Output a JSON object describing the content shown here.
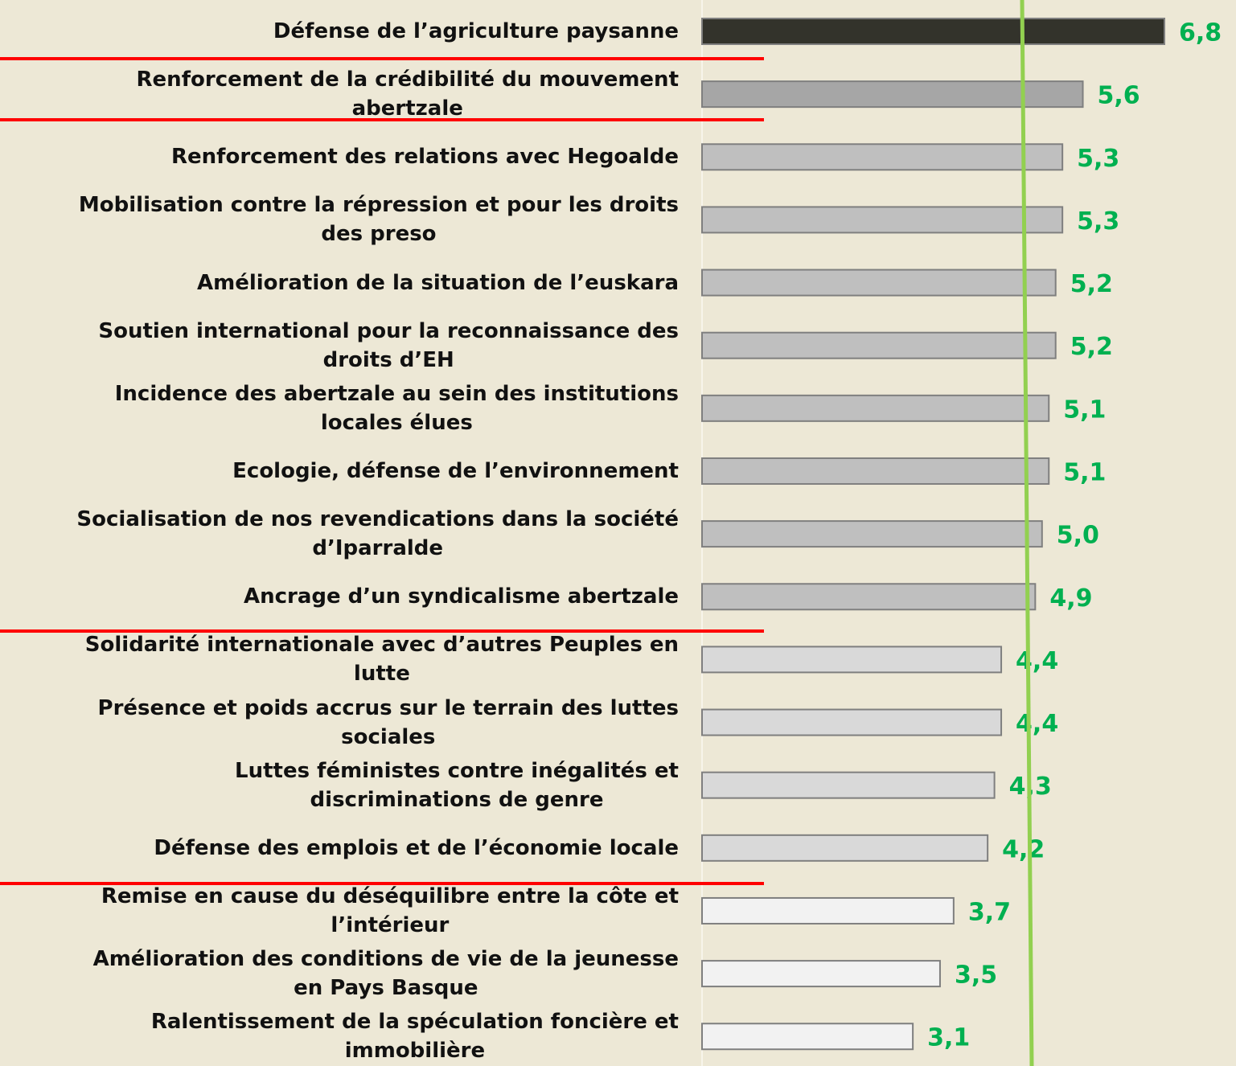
{
  "chart_data": {
    "type": "bar",
    "categories": [
      "Défense de l’agriculture paysanne",
      "Renforcement de la crédibilité du mouvement\nabertzale",
      "Renforcement des relations avec Hegoalde",
      "Mobilisation contre la répression et pour les droits\ndes preso",
      "Amélioration de la situation de l’euskara",
      "Soutien international pour la reconnaissance des\ndroits d’EH",
      "Incidence des abertzale au sein des institutions\nlocales élues",
      "Ecologie, défense de l’environnement",
      "Socialisation de nos revendications dans  la société\nd’Iparralde",
      "Ancrage d’un syndicalisme abertzale",
      "Solidarité internationale avec d’autres Peuples en\nlutte",
      "Présence et poids accrus sur le terrain des luttes\nsociales",
      "Luttes féministes contre inégalités et\ndiscriminations de genre",
      "Défense des emplois et de l’économie locale",
      "Remise en cause du déséquilibre entre la côte et\nl’intérieur",
      "Amélioration des conditions de vie de la jeunesse\nen Pays Basque",
      "Ralentissement de la spéculation foncière et\nimmobilière"
    ],
    "values": [
      6.8,
      5.6,
      5.3,
      5.3,
      5.2,
      5.2,
      5.1,
      5.1,
      5.0,
      4.9,
      4.4,
      4.4,
      4.3,
      4.2,
      3.7,
      3.5,
      3.1
    ],
    "value_labels": [
      "6,8",
      "5,6",
      "5,3",
      "5,3",
      "5,2",
      "5,2",
      "5,1",
      "5,1",
      "5,0",
      "4,9",
      "4,4",
      "4,4",
      "4,3",
      "4,2",
      "3,7",
      "3,5",
      "3,1"
    ],
    "colors": [
      "#33332b",
      "#a6a6a6",
      "#bfbfbf",
      "#bfbfbf",
      "#bfbfbf",
      "#bfbfbf",
      "#bfbfbf",
      "#bfbfbf",
      "#bfbfbf",
      "#bfbfbf",
      "#d9d9d9",
      "#d9d9d9",
      "#d9d9d9",
      "#d9d9d9",
      "#f2f2f2",
      "#f2f2f2",
      "#f2f2f2"
    ]
  }
}
